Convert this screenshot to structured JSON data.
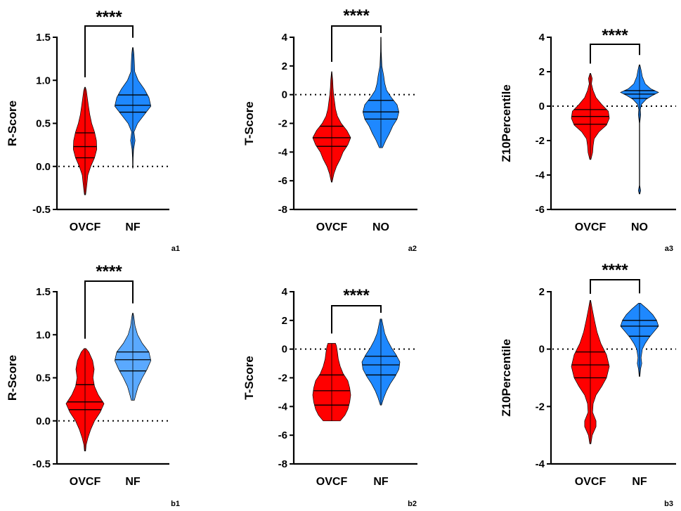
{
  "colors": {
    "ovcf": "#ff0000",
    "nf": "#1e88ff",
    "nf_light": "#5aa9ff"
  },
  "chart_data": [
    {
      "panel": "a1",
      "type": "violin",
      "ylabel": "R-Score",
      "ylim": [
        -0.5,
        1.5
      ],
      "yticks": [
        "-0.5",
        "0.0",
        "0.5",
        "1.0",
        "1.5"
      ],
      "ytick_values": [
        -0.5,
        0,
        0.5,
        1.0,
        1.5
      ],
      "ref_line": 0,
      "significance": "****",
      "groups": [
        {
          "name": "OVCF",
          "color": "#ff0000",
          "min": -0.33,
          "max": 0.92,
          "q1": 0.1,
          "median": 0.23,
          "q3": 0.39,
          "density": [
            [
              -0.33,
              0.03
            ],
            [
              -0.28,
              0.06
            ],
            [
              -0.2,
              0.1
            ],
            [
              -0.1,
              0.15
            ],
            [
              0.0,
              0.3
            ],
            [
              0.1,
              0.5
            ],
            [
              0.2,
              0.62
            ],
            [
              0.3,
              0.6
            ],
            [
              0.4,
              0.5
            ],
            [
              0.5,
              0.35
            ],
            [
              0.6,
              0.25
            ],
            [
              0.7,
              0.18
            ],
            [
              0.8,
              0.12
            ],
            [
              0.88,
              0.07
            ],
            [
              0.92,
              0.02
            ]
          ]
        },
        {
          "name": "NF",
          "color": "#1e88ff",
          "min": -0.02,
          "max": 1.38,
          "q1": 0.63,
          "median": 0.71,
          "q3": 0.83,
          "density": [
            [
              -0.02,
              0.01
            ],
            [
              0.1,
              0.02
            ],
            [
              0.2,
              0.04
            ],
            [
              0.3,
              0.12
            ],
            [
              0.4,
              0.06
            ],
            [
              0.5,
              0.25
            ],
            [
              0.6,
              0.6
            ],
            [
              0.7,
              0.95
            ],
            [
              0.8,
              0.85
            ],
            [
              0.9,
              0.6
            ],
            [
              1.0,
              0.28
            ],
            [
              1.1,
              0.1
            ],
            [
              1.2,
              0.08
            ],
            [
              1.3,
              0.06
            ],
            [
              1.38,
              0.02
            ]
          ]
        }
      ]
    },
    {
      "panel": "a2",
      "type": "violin",
      "ylabel": "T-Score",
      "ylim": [
        -8,
        4
      ],
      "yticks": [
        "-8",
        "-6",
        "-4",
        "-2",
        "0",
        "2",
        "4"
      ],
      "ytick_values": [
        -8,
        -6,
        -4,
        -2,
        0,
        2,
        4
      ],
      "ref_line": 0,
      "significance": "****",
      "groups": [
        {
          "name": "OVCF",
          "color": "#ff0000",
          "min": -6.1,
          "max": 1.6,
          "q1": -3.6,
          "median": -3.0,
          "q3": -2.2,
          "density": [
            [
              -6.1,
              0.02
            ],
            [
              -5.5,
              0.12
            ],
            [
              -5.0,
              0.25
            ],
            [
              -4.5,
              0.45
            ],
            [
              -4.0,
              0.6
            ],
            [
              -3.5,
              0.85
            ],
            [
              -3.0,
              1.0
            ],
            [
              -2.5,
              0.8
            ],
            [
              -2.0,
              0.5
            ],
            [
              -1.5,
              0.3
            ],
            [
              -1.0,
              0.2
            ],
            [
              -0.5,
              0.15
            ],
            [
              0.0,
              0.1
            ],
            [
              0.5,
              0.07
            ],
            [
              1.0,
              0.05
            ],
            [
              1.6,
              0.01
            ]
          ]
        },
        {
          "name": "NO",
          "color": "#1e88ff",
          "min": -3.7,
          "max": 4.0,
          "q1": -1.7,
          "median": -1.2,
          "q3": -0.4,
          "density": [
            [
              -3.7,
              0.08
            ],
            [
              -3.2,
              0.25
            ],
            [
              -2.7,
              0.45
            ],
            [
              -2.2,
              0.62
            ],
            [
              -1.7,
              0.85
            ],
            [
              -1.2,
              0.95
            ],
            [
              -0.7,
              0.85
            ],
            [
              -0.2,
              0.55
            ],
            [
              0.3,
              0.3
            ],
            [
              0.8,
              0.2
            ],
            [
              1.3,
              0.15
            ],
            [
              2.0,
              0.05
            ],
            [
              3.0,
              0.02
            ],
            [
              4.0,
              0.01
            ]
          ]
        }
      ]
    },
    {
      "panel": "a3",
      "type": "violin",
      "ylabel": "Z10Percentile",
      "ylim": [
        -6,
        4
      ],
      "yticks": [
        "-6",
        "-4",
        "-2",
        "0",
        "2",
        "4"
      ],
      "ytick_values": [
        -6,
        -4,
        -2,
        0,
        2,
        4
      ],
      "ref_line": 0,
      "significance": "****",
      "groups": [
        {
          "name": "OVCF",
          "color": "#ff0000",
          "min": -3.1,
          "max": 1.9,
          "q1": -1.05,
          "median": -0.6,
          "q3": -0.2,
          "density": [
            [
              -3.1,
              0.03
            ],
            [
              -2.7,
              0.12
            ],
            [
              -2.3,
              0.15
            ],
            [
              -1.9,
              0.2
            ],
            [
              -1.5,
              0.45
            ],
            [
              -1.1,
              0.85
            ],
            [
              -0.7,
              1.0
            ],
            [
              -0.3,
              0.95
            ],
            [
              0.1,
              0.6
            ],
            [
              0.5,
              0.3
            ],
            [
              0.9,
              0.15
            ],
            [
              1.3,
              0.06
            ],
            [
              1.6,
              0.1
            ],
            [
              1.9,
              0.02
            ]
          ]
        },
        {
          "name": "NO",
          "color": "#1e88ff",
          "min": -5.1,
          "max": 2.4,
          "q1": 0.45,
          "median": 0.7,
          "q3": 0.9,
          "density": [
            [
              -5.1,
              0.02
            ],
            [
              -4.9,
              0.06
            ],
            [
              -4.6,
              0.01
            ],
            [
              -3.0,
              0.01
            ],
            [
              -1.0,
              0.01
            ],
            [
              -0.5,
              0.06
            ],
            [
              -0.2,
              0.04
            ],
            [
              0.1,
              0.1
            ],
            [
              0.4,
              0.35
            ],
            [
              0.6,
              0.65
            ],
            [
              0.8,
              1.0
            ],
            [
              1.0,
              0.6
            ],
            [
              1.3,
              0.3
            ],
            [
              1.7,
              0.15
            ],
            [
              2.1,
              0.08
            ],
            [
              2.4,
              0.02
            ]
          ]
        }
      ]
    },
    {
      "panel": "b1",
      "type": "violin",
      "ylabel": "R-Score",
      "ylim": [
        -0.5,
        1.5
      ],
      "yticks": [
        "-0.5",
        "0.0",
        "0.5",
        "1.0",
        "1.5"
      ],
      "ytick_values": [
        -0.5,
        0,
        0.5,
        1.0,
        1.5
      ],
      "ref_line": 0,
      "significance": "****",
      "groups": [
        {
          "name": "OVCF",
          "color": "#ff0000",
          "min": -0.35,
          "max": 0.84,
          "q1": 0.13,
          "median": 0.22,
          "q3": 0.42,
          "density": [
            [
              -0.35,
              0.03
            ],
            [
              -0.28,
              0.06
            ],
            [
              -0.2,
              0.15
            ],
            [
              -0.1,
              0.3
            ],
            [
              0.0,
              0.5
            ],
            [
              0.1,
              0.8
            ],
            [
              0.2,
              1.0
            ],
            [
              0.3,
              0.7
            ],
            [
              0.4,
              0.5
            ],
            [
              0.5,
              0.42
            ],
            [
              0.6,
              0.48
            ],
            [
              0.7,
              0.4
            ],
            [
              0.8,
              0.2
            ],
            [
              0.84,
              0.05
            ]
          ]
        },
        {
          "name": "NF",
          "color": "#5aa9ff",
          "min": 0.24,
          "max": 1.25,
          "q1": 0.58,
          "median": 0.71,
          "q3": 0.8,
          "density": [
            [
              0.24,
              0.08
            ],
            [
              0.3,
              0.15
            ],
            [
              0.4,
              0.28
            ],
            [
              0.5,
              0.5
            ],
            [
              0.6,
              0.75
            ],
            [
              0.7,
              0.95
            ],
            [
              0.8,
              0.85
            ],
            [
              0.9,
              0.5
            ],
            [
              1.0,
              0.25
            ],
            [
              1.1,
              0.12
            ],
            [
              1.2,
              0.06
            ],
            [
              1.25,
              0.02
            ]
          ]
        }
      ]
    },
    {
      "panel": "b2",
      "type": "violin",
      "ylabel": "T-Score",
      "ylim": [
        -8,
        4
      ],
      "yticks": [
        "-8",
        "-6",
        "-4",
        "-2",
        "0",
        "2",
        "4"
      ],
      "ytick_values": [
        -8,
        -6,
        -4,
        -2,
        0,
        2,
        4
      ],
      "ref_line": 0,
      "significance": "****",
      "groups": [
        {
          "name": "OVCF",
          "color": "#ff0000",
          "min": -5.0,
          "max": 0.4,
          "q1": -3.9,
          "median": -2.9,
          "q3": -1.8,
          "density": [
            [
              -5.0,
              0.45
            ],
            [
              -4.6,
              0.7
            ],
            [
              -4.2,
              0.85
            ],
            [
              -3.7,
              0.95
            ],
            [
              -3.2,
              1.0
            ],
            [
              -2.7,
              0.95
            ],
            [
              -2.2,
              0.85
            ],
            [
              -1.7,
              0.6
            ],
            [
              -1.2,
              0.45
            ],
            [
              -0.7,
              0.35
            ],
            [
              -0.2,
              0.3
            ],
            [
              0.2,
              0.25
            ],
            [
              0.4,
              0.2
            ]
          ]
        },
        {
          "name": "NF",
          "color": "#1e88ff",
          "min": -3.9,
          "max": 2.1,
          "q1": -1.8,
          "median": -1.1,
          "q3": -0.5,
          "density": [
            [
              -3.9,
              0.03
            ],
            [
              -3.4,
              0.15
            ],
            [
              -2.9,
              0.3
            ],
            [
              -2.4,
              0.5
            ],
            [
              -1.9,
              0.75
            ],
            [
              -1.4,
              0.95
            ],
            [
              -0.9,
              1.0
            ],
            [
              -0.4,
              0.8
            ],
            [
              0.1,
              0.55
            ],
            [
              0.6,
              0.35
            ],
            [
              1.1,
              0.2
            ],
            [
              1.6,
              0.12
            ],
            [
              2.1,
              0.04
            ]
          ]
        }
      ]
    },
    {
      "panel": "b3",
      "type": "violin",
      "ylabel": "Z10Percentile",
      "ylim": [
        -4,
        2
      ],
      "yticks": [
        "-4",
        "-2",
        "0",
        "2"
      ],
      "ytick_values": [
        -4,
        -2,
        0,
        2
      ],
      "ref_line": 0,
      "significance": "****",
      "groups": [
        {
          "name": "OVCF",
          "color": "#ff0000",
          "min": -3.3,
          "max": 1.7,
          "q1": -1.0,
          "median": -0.55,
          "q3": -0.1,
          "density": [
            [
              -3.3,
              0.03
            ],
            [
              -3.0,
              0.1
            ],
            [
              -2.7,
              0.3
            ],
            [
              -2.5,
              0.3
            ],
            [
              -2.2,
              0.12
            ],
            [
              -1.9,
              0.15
            ],
            [
              -1.6,
              0.3
            ],
            [
              -1.3,
              0.6
            ],
            [
              -1.0,
              0.85
            ],
            [
              -0.6,
              1.0
            ],
            [
              -0.2,
              0.85
            ],
            [
              0.2,
              0.55
            ],
            [
              0.6,
              0.35
            ],
            [
              1.0,
              0.22
            ],
            [
              1.4,
              0.1
            ],
            [
              1.7,
              0.02
            ]
          ]
        },
        {
          "name": "NF",
          "color": "#1e88ff",
          "min": -0.95,
          "max": 1.6,
          "q1": 0.45,
          "median": 0.8,
          "q3": 1.0,
          "density": [
            [
              -0.95,
              0.02
            ],
            [
              -0.7,
              0.05
            ],
            [
              -0.5,
              0.12
            ],
            [
              -0.3,
              0.08
            ],
            [
              0.0,
              0.15
            ],
            [
              0.2,
              0.3
            ],
            [
              0.4,
              0.5
            ],
            [
              0.6,
              0.75
            ],
            [
              0.8,
              1.0
            ],
            [
              1.0,
              0.9
            ],
            [
              1.2,
              0.7
            ],
            [
              1.4,
              0.4
            ],
            [
              1.6,
              0.05
            ]
          ]
        }
      ]
    }
  ]
}
